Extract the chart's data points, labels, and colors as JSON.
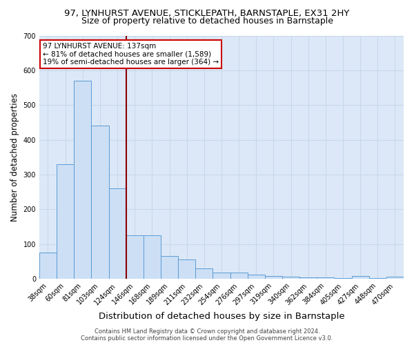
{
  "title": "97, LYNHURST AVENUE, STICKLEPATH, BARNSTAPLE, EX31 2HY",
  "subtitle": "Size of property relative to detached houses in Barnstaple",
  "xlabel": "Distribution of detached houses by size in Barnstaple",
  "ylabel": "Number of detached properties",
  "categories": [
    "38sqm",
    "60sqm",
    "81sqm",
    "103sqm",
    "124sqm",
    "146sqm",
    "168sqm",
    "189sqm",
    "211sqm",
    "232sqm",
    "254sqm",
    "276sqm",
    "297sqm",
    "319sqm",
    "340sqm",
    "362sqm",
    "384sqm",
    "405sqm",
    "427sqm",
    "448sqm",
    "470sqm"
  ],
  "values": [
    75,
    330,
    570,
    440,
    260,
    125,
    125,
    65,
    55,
    30,
    18,
    18,
    12,
    8,
    5,
    4,
    3,
    2,
    8,
    2,
    5
  ],
  "bar_color": "#ccdff5",
  "bar_edge_color": "#5b9bd5",
  "vline_color": "#8b0000",
  "vline_x_index": 4.5,
  "annotation_line1": "97 LYNHURST AVENUE: 137sqm",
  "annotation_line2": "← 81% of detached houses are smaller (1,589)",
  "annotation_line3": "19% of semi-detached houses are larger (364) →",
  "annotation_box_color": "#ffffff",
  "annotation_box_edge": "#cc0000",
  "ylim": [
    0,
    700
  ],
  "yticks": [
    0,
    100,
    200,
    300,
    400,
    500,
    600,
    700
  ],
  "footer": "Contains HM Land Registry data © Crown copyright and database right 2024.\nContains public sector information licensed under the Open Government Licence v3.0.",
  "bg_color": "#dce8f7",
  "grid_color": "#c8d8ea",
  "title_fontsize": 9.5,
  "subtitle_fontsize": 9,
  "xlabel_fontsize": 9.5,
  "ylabel_fontsize": 8.5,
  "tick_fontsize": 7,
  "footer_fontsize": 6,
  "annot_fontsize": 7.5
}
